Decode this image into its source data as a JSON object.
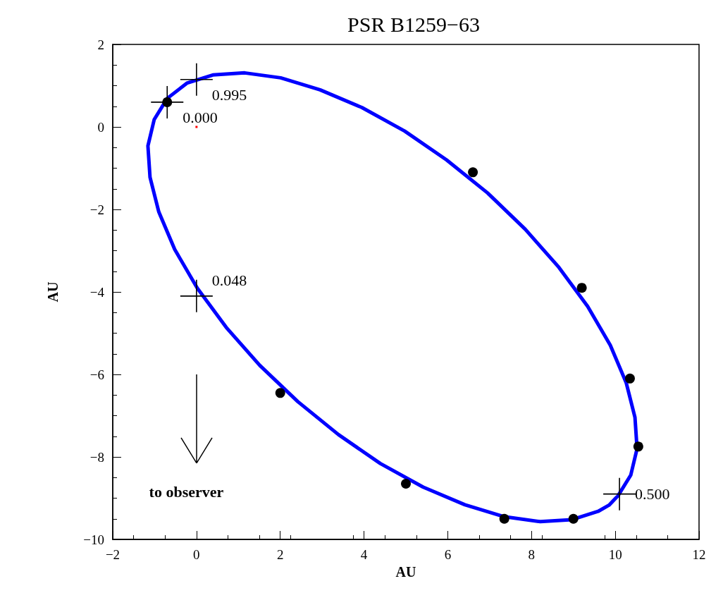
{
  "chart_data": {
    "type": "line",
    "title": "PSR B1259−63",
    "xlabel": "AU",
    "ylabel": "AU",
    "xlim": [
      -2,
      12
    ],
    "xticks": [
      -2,
      0,
      2,
      4,
      6,
      8,
      10,
      12
    ],
    "ylim": [
      -10,
      2
    ],
    "yticks": [
      -10,
      -8,
      -6,
      -4,
      -2,
      0,
      2
    ],
    "grid": false,
    "series": [
      {
        "color": "#0000ff",
        "marker": "none",
        "line_style": "solid",
        "x": [
          10.06,
          10.37,
          10.52,
          10.47,
          10.26,
          9.88,
          9.34,
          8.65,
          7.85,
          6.95,
          5.97,
          4.97,
          3.95,
          2.95,
          2.01,
          1.15,
          0.39,
          -0.23,
          -0.7,
          -1.01,
          -1.16,
          -1.11,
          -0.9,
          -0.52,
          0.02,
          0.71,
          1.51,
          2.42,
          3.39,
          4.39,
          5.41,
          6.41,
          7.35,
          8.21,
          8.97,
          9.59,
          9.85,
          10.03
        ],
        "values": [
          -8.95,
          -8.44,
          -7.8,
          -7.04,
          -6.2,
          -5.29,
          -4.35,
          -3.4,
          -2.48,
          -1.6,
          -0.8,
          -0.1,
          0.47,
          0.9,
          1.19,
          1.31,
          1.26,
          1.06,
          0.69,
          0.18,
          -0.46,
          -1.22,
          -2.06,
          -2.97,
          -3.91,
          -4.86,
          -5.78,
          -6.66,
          -7.46,
          -8.16,
          -8.73,
          -9.16,
          -9.45,
          -9.57,
          -9.52,
          -9.32,
          -9.17,
          -8.98
        ]
      },
      {
        "type": "scatter",
        "color": "#000000",
        "marker": "circle",
        "x": [
          -0.7,
          6.6,
          9.2,
          10.35,
          10.55,
          9.0,
          7.35,
          5.0,
          2.0
        ],
        "values": [
          0.6,
          -1.1,
          -3.9,
          -6.1,
          -7.75,
          -9.5,
          -9.5,
          -8.65,
          -6.45
        ]
      },
      {
        "type": "scatter",
        "color": "#000000",
        "marker": "cross",
        "x": [
          0,
          -0.7,
          0,
          10.1
        ],
        "values": [
          1.15,
          0.6,
          -4.1,
          -8.9
        ]
      },
      {
        "type": "scatter",
        "color": "#ff0000",
        "marker": "square",
        "x": [
          0
        ],
        "values": [
          0
        ]
      }
    ],
    "annotations": [
      {
        "text": "0.995",
        "x": 0,
        "y": 1.15
      },
      {
        "text": "0.000",
        "x": -0.7,
        "y": 0.6
      },
      {
        "text": "0.048",
        "x": 0,
        "y": -4.1
      },
      {
        "text": "0.500",
        "x": 10.1,
        "y": -8.9
      },
      "to observer"
    ]
  }
}
